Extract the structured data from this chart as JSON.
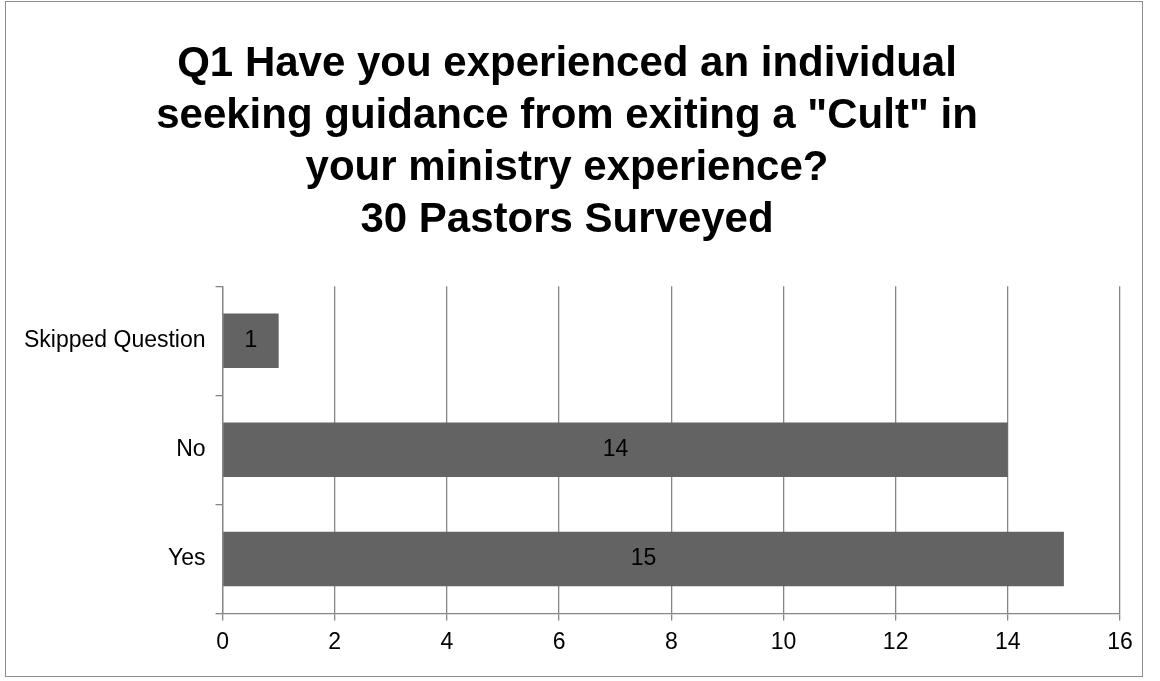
{
  "chart_data": {
    "type": "bar",
    "title": "Q1 Have you experienced an individual seeking guidance from exiting a \"Cult\" in your ministry experience?",
    "subtitle": "30 Pastors Surveyed",
    "categories": [
      "Skipped Question",
      "No",
      "Yes"
    ],
    "values": [
      1,
      14,
      15
    ],
    "color": "#636363",
    "orientation": "horizontal",
    "xlim": [
      0,
      16
    ],
    "xticks": [
      0,
      2,
      4,
      6,
      8,
      10,
      12,
      14,
      16
    ],
    "grid": "x",
    "data_labels": true
  }
}
